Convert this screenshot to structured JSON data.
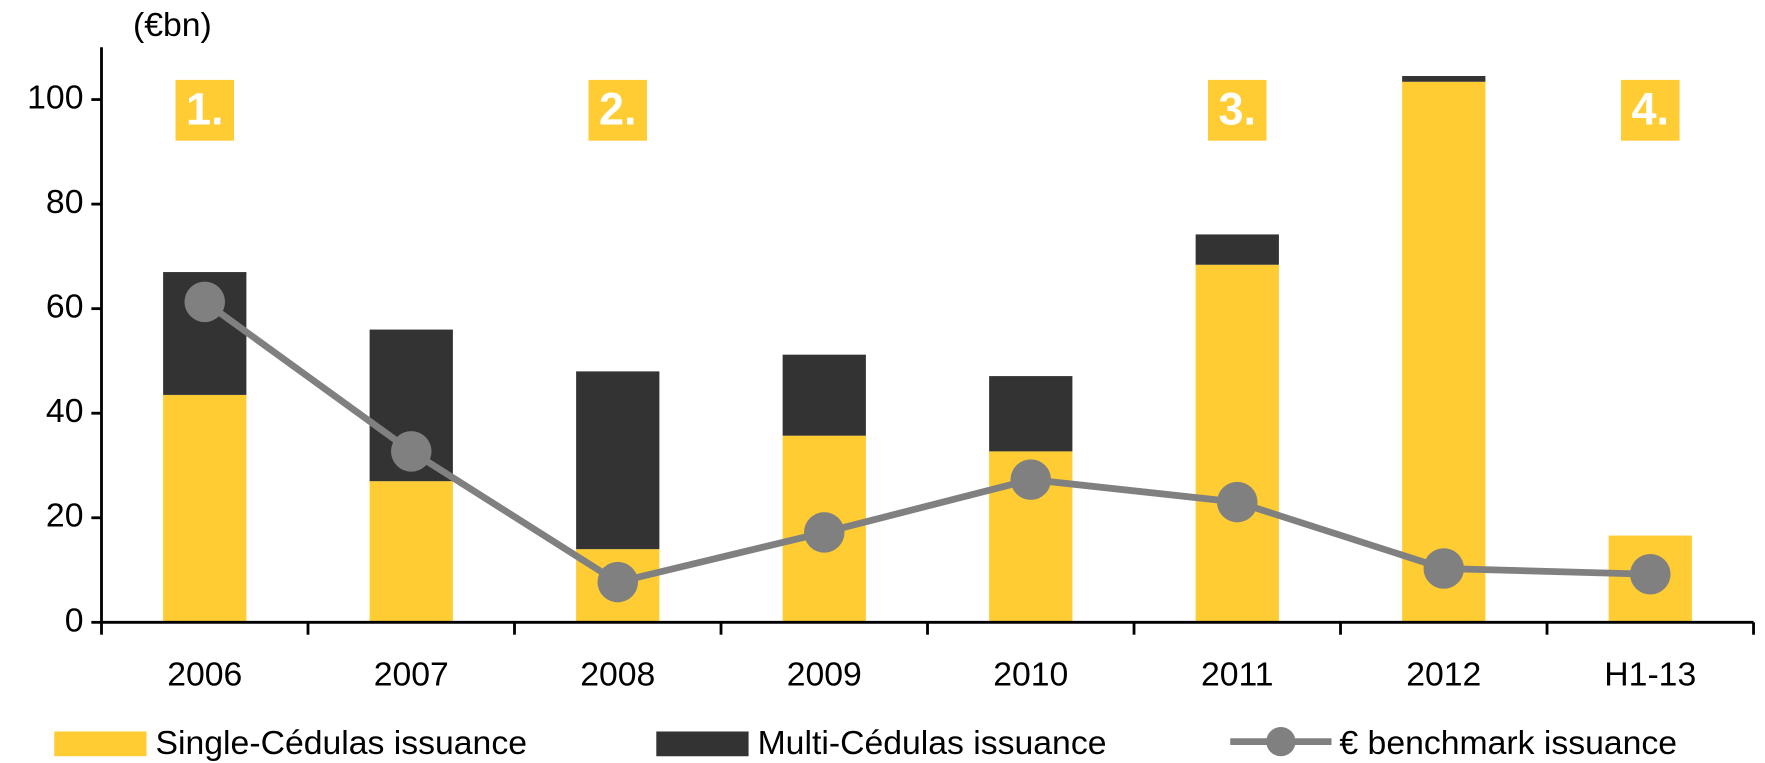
{
  "chart_data": {
    "type": "bar",
    "y_label": "(€bn)",
    "categories": [
      "2006",
      "2007",
      "2008",
      "2009",
      "2010",
      "2011",
      "2012",
      "H1-13"
    ],
    "series": [
      {
        "name": "Single-Cédulas issuance",
        "type": "bar",
        "color": "#FFCC33",
        "values": [
          43.5,
          27,
          14,
          35.7,
          32.7,
          68.4,
          103.4,
          16.6
        ]
      },
      {
        "name": "Multi-Cédulas issuance",
        "type": "bar",
        "color": "#333333",
        "values": [
          23.5,
          29,
          34,
          15.5,
          14.4,
          5.8,
          1.1,
          0
        ]
      },
      {
        "name": "€ benchmark issuance",
        "type": "line",
        "color": "#808080",
        "values": [
          61.3,
          32.7,
          7.7,
          17.2,
          27.3,
          23,
          10.3,
          9.2
        ]
      }
    ],
    "stacked": true,
    "annotations": [
      "1.",
      "2.",
      "3.",
      "4."
    ],
    "annotation_color": "#FFCC33",
    "ylim": [
      0,
      110
    ],
    "yticks": [
      0,
      20,
      40,
      60,
      80,
      100
    ]
  }
}
